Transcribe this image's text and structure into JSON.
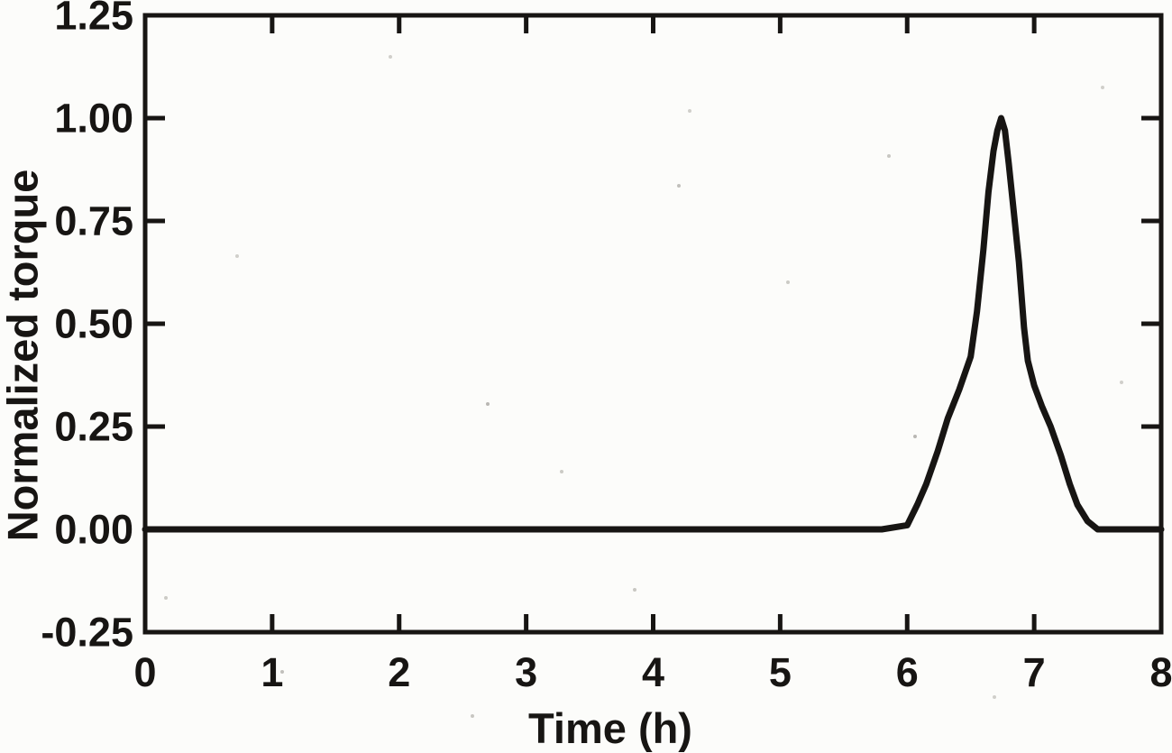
{
  "figure": {
    "background": "#fcfcfa",
    "ink": "#171513"
  },
  "chart_data": {
    "type": "line",
    "title": "",
    "xlabel": "Time (h)",
    "ylabel": "Normalized torque",
    "xlim": [
      0,
      8
    ],
    "ylim": [
      -0.25,
      1.25
    ],
    "grid": false,
    "legend": null,
    "tick_style": "inward-all-four-sides",
    "x_ticks": [
      0,
      1,
      2,
      3,
      4,
      5,
      6,
      7,
      8
    ],
    "x_tick_labels": [
      "0",
      "1",
      "2",
      "3",
      "4",
      "5",
      "6",
      "7",
      "8"
    ],
    "y_ticks": [
      -0.25,
      0.0,
      0.25,
      0.5,
      0.75,
      1.0,
      1.25
    ],
    "y_tick_labels": [
      "-0.25",
      "0.00",
      "0.25",
      "0.50",
      "0.75",
      "1.00",
      "1.25"
    ],
    "series": [
      {
        "name": "normalized-torque",
        "color": "#171513",
        "points": [
          [
            0,
            0
          ],
          [
            0.5,
            0
          ],
          [
            1,
            0
          ],
          [
            1.5,
            0
          ],
          [
            2,
            0
          ],
          [
            2.5,
            0
          ],
          [
            3,
            0
          ],
          [
            3.5,
            0
          ],
          [
            4,
            0
          ],
          [
            4.5,
            0
          ],
          [
            5,
            0
          ],
          [
            5.5,
            0
          ],
          [
            5.8,
            0
          ],
          [
            6.0,
            0.01
          ],
          [
            6.08,
            0.06
          ],
          [
            6.15,
            0.11
          ],
          [
            6.24,
            0.19
          ],
          [
            6.32,
            0.27
          ],
          [
            6.41,
            0.34
          ],
          [
            6.5,
            0.42
          ],
          [
            6.55,
            0.53
          ],
          [
            6.6,
            0.68
          ],
          [
            6.64,
            0.82
          ],
          [
            6.68,
            0.92
          ],
          [
            6.71,
            0.97
          ],
          [
            6.74,
            1.0
          ],
          [
            6.77,
            0.97
          ],
          [
            6.8,
            0.89
          ],
          [
            6.84,
            0.77
          ],
          [
            6.88,
            0.65
          ],
          [
            6.92,
            0.49
          ],
          [
            6.95,
            0.41
          ],
          [
            7.0,
            0.35
          ],
          [
            7.06,
            0.3
          ],
          [
            7.13,
            0.25
          ],
          [
            7.21,
            0.18
          ],
          [
            7.28,
            0.11
          ],
          [
            7.34,
            0.06
          ],
          [
            7.42,
            0.02
          ],
          [
            7.5,
            0
          ],
          [
            7.75,
            0
          ],
          [
            8,
            0
          ]
        ]
      }
    ]
  }
}
